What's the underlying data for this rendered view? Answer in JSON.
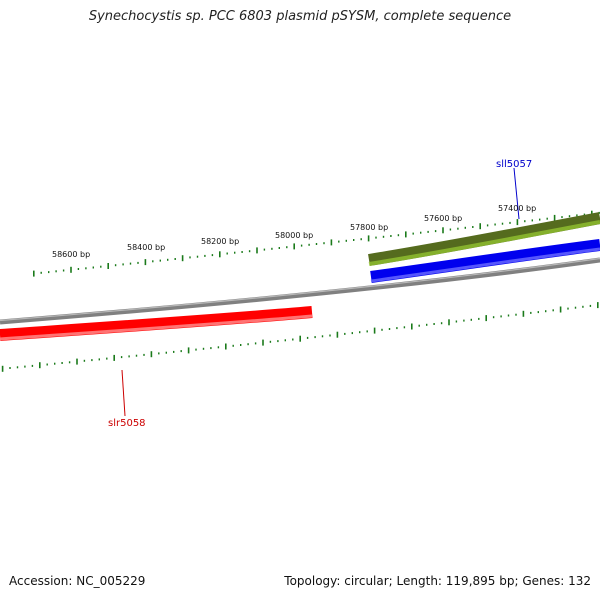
{
  "title": "Synechocystis sp. PCC 6803 plasmid pSYSM, complete sequence",
  "footer": {
    "accession": "Accession: NC_005229",
    "summary": "Topology: circular; Length: 119,895 bp; Genes: 132"
  },
  "scale_labels": [
    "58600 bp",
    "58400 bp",
    "58200 bp",
    "58000 bp",
    "57800 bp",
    "57600 bp",
    "57400 bp"
  ],
  "genes": [
    {
      "name": "sll5057",
      "strand": "forward",
      "color": "#0000cc"
    },
    {
      "name": "slr5058",
      "strand": "reverse",
      "color": "#cc0000"
    }
  ],
  "colors": {
    "backbone": "#808080",
    "forward_gene": "#0000ff",
    "reverse_gene": "#ff0000",
    "cds_feature": "#6b8e23",
    "ticks": "#1a7a1a"
  }
}
